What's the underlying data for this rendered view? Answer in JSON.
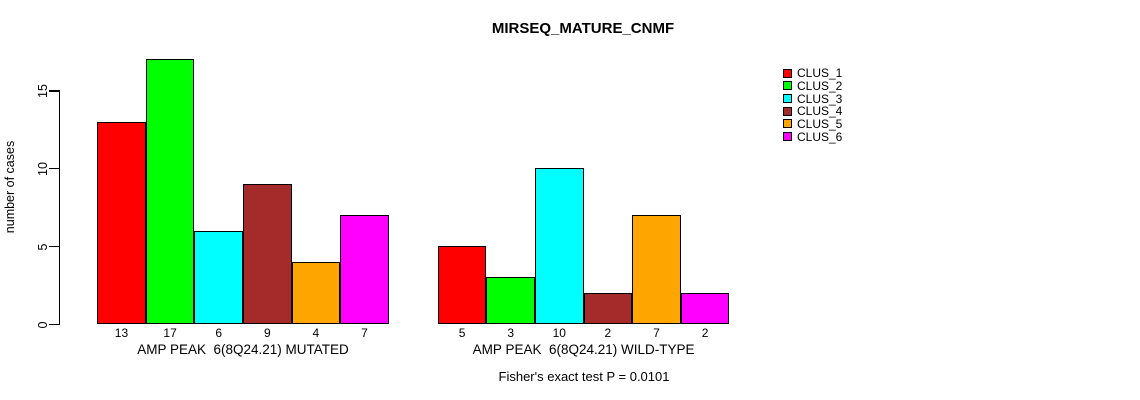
{
  "chart_data": {
    "type": "bar",
    "title": "MIRSEQ_MATURE_CNMF",
    "ylabel": "number of cases",
    "ylim": [
      0,
      17
    ],
    "yticks": [
      0,
      5,
      10,
      15
    ],
    "grid": false,
    "legend_position": "right",
    "legend": [
      "CLUS_1",
      "CLUS_2",
      "CLUS_3",
      "CLUS_4",
      "CLUS_5",
      "CLUS_6"
    ],
    "series_colors": [
      "#ff0000",
      "#00ff00",
      "#00ffff",
      "#a52a2a",
      "#ffa500",
      "#ff00ff"
    ],
    "groups": [
      {
        "label": "AMP PEAK  6(8Q24.21) MUTATED",
        "values": [
          13,
          17,
          6,
          9,
          4,
          7
        ]
      },
      {
        "label": "AMP PEAK  6(8Q24.21) WILD-TYPE",
        "values": [
          5,
          3,
          10,
          2,
          7,
          2
        ]
      }
    ],
    "annotation": "Fisher's exact test P = 0.0101"
  }
}
